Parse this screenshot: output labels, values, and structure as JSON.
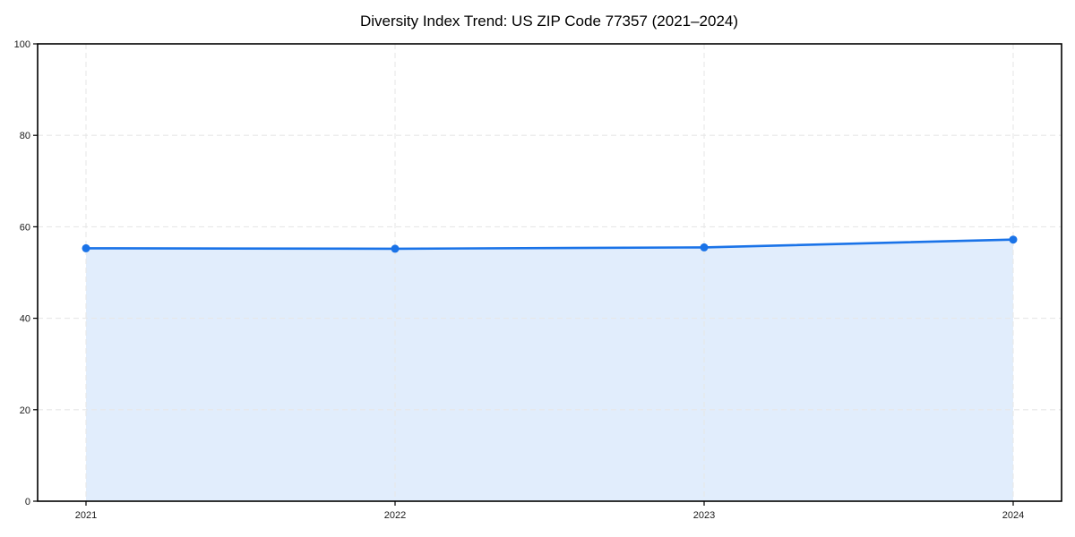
{
  "page": {
    "background": "#ffffff"
  },
  "chart_data": {
    "type": "area",
    "title": "Diversity Index Trend: US ZIP Code 77357 (2021–2024)",
    "categories": [
      "2021",
      "2022",
      "2023",
      "2024"
    ],
    "series": [
      {
        "name": "Diversity Index",
        "values": [
          55.3,
          55.2,
          55.5,
          57.2
        ]
      }
    ],
    "xlabel": "",
    "ylabel": "",
    "ylim": [
      0,
      100
    ],
    "yticks": [
      0,
      20,
      40,
      60,
      80,
      100
    ],
    "grid": true,
    "grid_style": "dashed",
    "legend_position": "none",
    "colors": {
      "line": "#1a73e8",
      "marker": "#1a73e8",
      "fill": "rgba(26,115,232,0.13)",
      "grid": "#e7e7e7",
      "spine": "#000000",
      "tick_text": "#1a1a1a",
      "title_text": "#000000"
    }
  }
}
